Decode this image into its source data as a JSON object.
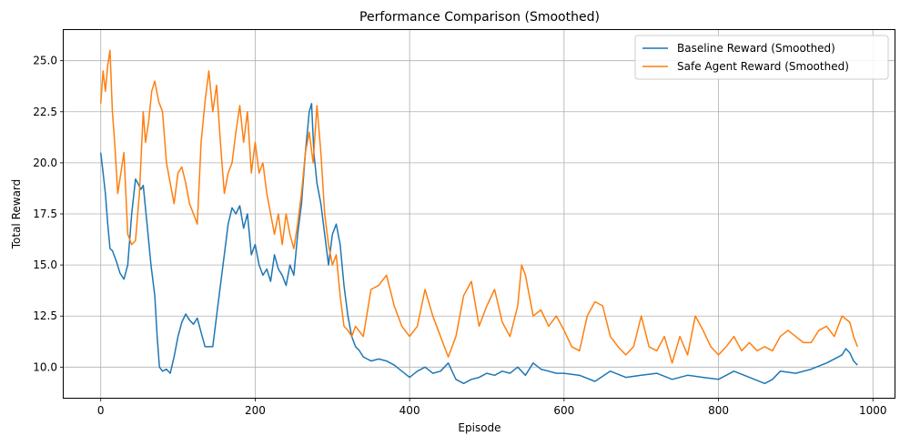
{
  "chart_data": {
    "type": "line",
    "title": "Performance Comparison (Smoothed)",
    "xlabel": "Episode",
    "ylabel": "Total Reward",
    "xlim": [
      -48,
      1028
    ],
    "ylim": [
      8.5,
      26.5
    ],
    "xticks": [
      0,
      200,
      400,
      600,
      800,
      1000
    ],
    "yticks": [
      10.0,
      12.5,
      15.0,
      17.5,
      20.0,
      22.5,
      25.0
    ],
    "xtick_labels": [
      "0",
      "200",
      "400",
      "600",
      "800",
      "1000"
    ],
    "ytick_labels": [
      "10.0",
      "12.5",
      "15.0",
      "17.5",
      "20.0",
      "22.5",
      "25.0"
    ],
    "grid": true,
    "legend_position": "top-right",
    "series": [
      {
        "name": "Baseline Reward (Smoothed)",
        "color": "#1f77b4",
        "x": [
          0,
          3,
          6,
          9,
          12,
          15,
          20,
          25,
          30,
          35,
          40,
          45,
          48,
          52,
          55,
          60,
          65,
          70,
          73,
          76,
          80,
          85,
          90,
          95,
          100,
          105,
          110,
          115,
          120,
          125,
          130,
          135,
          140,
          145,
          150,
          155,
          160,
          165,
          170,
          175,
          180,
          185,
          190,
          195,
          200,
          205,
          210,
          215,
          220,
          225,
          230,
          235,
          240,
          245,
          250,
          255,
          260,
          265,
          270,
          273,
          276,
          280,
          285,
          290,
          295,
          300,
          305,
          310,
          315,
          320,
          325,
          330,
          335,
          340,
          345,
          350,
          360,
          370,
          380,
          390,
          400,
          410,
          420,
          430,
          440,
          450,
          460,
          470,
          480,
          490,
          500,
          510,
          520,
          530,
          540,
          550,
          560,
          570,
          580,
          590,
          600,
          620,
          640,
          660,
          680,
          700,
          720,
          740,
          760,
          780,
          800,
          820,
          840,
          860,
          870,
          880,
          900,
          920,
          940,
          950,
          960,
          965,
          970,
          975,
          980
        ],
        "values": [
          20.5,
          19.5,
          18.5,
          17.0,
          15.8,
          15.7,
          15.2,
          14.6,
          14.3,
          15.0,
          17.5,
          19.2,
          19.0,
          18.7,
          18.9,
          17.0,
          15.0,
          13.5,
          11.5,
          10.0,
          9.8,
          9.9,
          9.7,
          10.5,
          11.5,
          12.2,
          12.6,
          12.3,
          12.1,
          12.4,
          11.7,
          11.0,
          11.0,
          11.0,
          12.5,
          14.0,
          15.5,
          17.0,
          17.8,
          17.5,
          17.9,
          16.8,
          17.5,
          15.5,
          16.0,
          15.0,
          14.5,
          14.8,
          14.2,
          15.5,
          14.8,
          14.5,
          14.0,
          15.0,
          14.5,
          16.5,
          18.0,
          20.5,
          22.5,
          22.9,
          20.5,
          19.0,
          18.0,
          16.5,
          15.0,
          16.5,
          17.0,
          16.0,
          14.0,
          12.5,
          11.5,
          11.0,
          10.8,
          10.5,
          10.4,
          10.3,
          10.4,
          10.3,
          10.1,
          9.8,
          9.5,
          9.8,
          10.0,
          9.7,
          9.8,
          10.2,
          9.4,
          9.2,
          9.4,
          9.5,
          9.7,
          9.6,
          9.8,
          9.7,
          10.0,
          9.6,
          10.2,
          9.9,
          9.8,
          9.7,
          9.7,
          9.6,
          9.3,
          9.8,
          9.5,
          9.6,
          9.7,
          9.4,
          9.6,
          9.5,
          9.4,
          9.8,
          9.5,
          9.2,
          9.4,
          9.8,
          9.7,
          9.9,
          10.2,
          10.4,
          10.6,
          10.9,
          10.7,
          10.3,
          10.1
        ]
      },
      {
        "name": "Safe Agent Reward (Smoothed)",
        "color": "#ff7f0e",
        "x": [
          0,
          3,
          6,
          9,
          12,
          15,
          18,
          22,
          26,
          30,
          35,
          40,
          45,
          50,
          55,
          58,
          62,
          66,
          70,
          75,
          80,
          85,
          90,
          95,
          100,
          105,
          110,
          115,
          120,
          125,
          130,
          135,
          140,
          145,
          150,
          155,
          160,
          165,
          170,
          175,
          180,
          185,
          190,
          195,
          200,
          205,
          210,
          215,
          220,
          225,
          230,
          235,
          240,
          245,
          250,
          255,
          260,
          265,
          270,
          275,
          280,
          285,
          290,
          295,
          300,
          305,
          310,
          315,
          320,
          325,
          330,
          340,
          350,
          360,
          370,
          380,
          390,
          400,
          410,
          420,
          430,
          440,
          450,
          460,
          470,
          480,
          490,
          500,
          510,
          520,
          530,
          540,
          545,
          550,
          560,
          570,
          580,
          590,
          600,
          610,
          620,
          630,
          640,
          650,
          660,
          670,
          680,
          690,
          700,
          710,
          720,
          730,
          740,
          750,
          760,
          770,
          780,
          790,
          800,
          810,
          820,
          830,
          840,
          850,
          860,
          870,
          880,
          890,
          900,
          910,
          920,
          930,
          940,
          950,
          960,
          970,
          975,
          980
        ],
        "values": [
          22.9,
          24.5,
          23.5,
          24.8,
          25.5,
          22.5,
          21.0,
          18.5,
          19.5,
          20.5,
          16.5,
          16.0,
          16.2,
          18.5,
          22.5,
          21.0,
          22.0,
          23.5,
          24.0,
          23.0,
          22.5,
          20.0,
          19.0,
          18.0,
          19.5,
          19.8,
          19.0,
          18.0,
          17.5,
          17.0,
          21.0,
          23.0,
          24.5,
          22.5,
          23.8,
          21.0,
          18.5,
          19.5,
          20.0,
          21.5,
          22.8,
          21.0,
          22.5,
          19.5,
          21.0,
          19.5,
          20.0,
          18.5,
          17.5,
          16.5,
          17.5,
          16.0,
          17.5,
          16.5,
          15.8,
          17.0,
          18.5,
          20.5,
          21.5,
          20.0,
          22.8,
          20.5,
          17.5,
          16.0,
          15.0,
          15.5,
          13.5,
          12.0,
          11.8,
          11.5,
          12.0,
          11.5,
          13.8,
          14.0,
          14.5,
          13.0,
          12.0,
          11.5,
          12.0,
          13.8,
          12.5,
          11.5,
          10.5,
          11.5,
          13.5,
          14.2,
          12.0,
          13.0,
          13.8,
          12.2,
          11.5,
          13.0,
          15.0,
          14.5,
          12.5,
          12.8,
          12.0,
          12.5,
          11.8,
          11.0,
          10.8,
          12.5,
          13.2,
          13.0,
          11.5,
          11.0,
          10.6,
          11.0,
          12.5,
          11.0,
          10.8,
          11.5,
          10.2,
          11.5,
          10.6,
          12.5,
          11.8,
          11.0,
          10.6,
          11.0,
          11.5,
          10.8,
          11.2,
          10.8,
          11.0,
          10.8,
          11.5,
          11.8,
          11.5,
          11.2,
          11.2,
          11.8,
          12.0,
          11.5,
          12.5,
          12.2,
          11.5,
          11.0
        ]
      }
    ]
  }
}
